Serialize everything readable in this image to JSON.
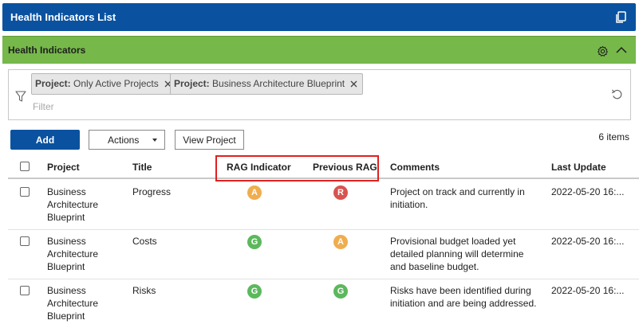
{
  "header": {
    "title": "Health Indicators List",
    "icon": "copy-icon"
  },
  "panel": {
    "title": "Health Indicators",
    "icons": [
      "gear-icon",
      "chevron-up-icon"
    ]
  },
  "filters": {
    "chips": [
      {
        "key": "Project:",
        "value": "Only Active Projects"
      },
      {
        "key": "Project:",
        "value": "Business Architecture Blueprint"
      }
    ],
    "placeholder": "Filter"
  },
  "toolbar": {
    "add_label": "Add",
    "actions_label": "Actions",
    "view_label": "View Project",
    "item_count": "6 items"
  },
  "table": {
    "columns": [
      "Project",
      "Title",
      "RAG Indicator",
      "Previous RAG",
      "Comments",
      "Last Update"
    ],
    "rows": [
      {
        "project": [
          "Business",
          "Architecture",
          "Blueprint"
        ],
        "title": "Progress",
        "rag": "A",
        "prev": "R",
        "comments": [
          "Project on track and currently in",
          "initiation."
        ],
        "updated": "2022-05-20 16:..."
      },
      {
        "project": [
          "Business",
          "Architecture",
          "Blueprint"
        ],
        "title": "Costs",
        "rag": "G",
        "prev": "A",
        "comments": [
          "Provisional budget loaded yet",
          "detailed planning will determine",
          "and baseline budget."
        ],
        "updated": "2022-05-20 16:..."
      },
      {
        "project": [
          "Business",
          "Architecture",
          "Blueprint"
        ],
        "title": "Risks",
        "rag": "G",
        "prev": "G",
        "comments": [
          "Risks have been identified during",
          "initiation and are being addressed."
        ],
        "updated": "2022-05-20 16:..."
      }
    ]
  },
  "colors": {
    "header_blue": "#0a52a0",
    "panel_green": "#76b84a",
    "rag_green": "#5cb85c",
    "rag_amber": "#f0ad4e",
    "rag_red": "#d9534f",
    "highlight": "#e02020"
  }
}
